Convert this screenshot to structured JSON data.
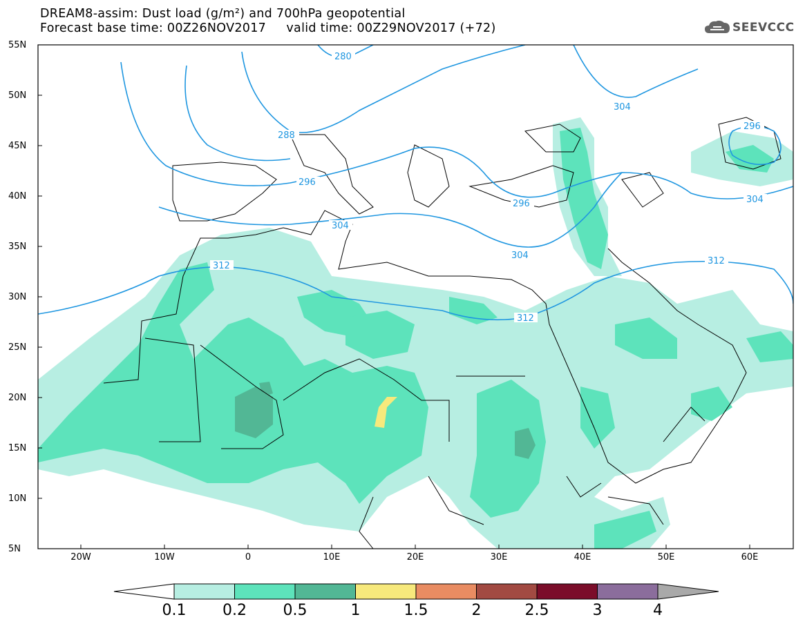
{
  "header": {
    "title_line1": "DREAM8-assim: Dust load (g/m²) and 700hPa geopotential",
    "title_line2": "Forecast base time: 00Z26NOV2017     valid time: 00Z29NOV2017 (+72)"
  },
  "logo": {
    "text": "SEEVCCC",
    "icon": "cloud-icon"
  },
  "map": {
    "lat_labels": [
      "55N",
      "50N",
      "45N",
      "40N",
      "35N",
      "30N",
      "25N",
      "20N",
      "15N",
      "10N",
      "5N"
    ],
    "lon_labels": [
      "20W",
      "10W",
      "0",
      "10E",
      "20E",
      "30E",
      "40E",
      "50E",
      "60E"
    ],
    "contour_labels": [
      {
        "id": "c280",
        "text": "280"
      },
      {
        "id": "c288",
        "text": "288"
      },
      {
        "id": "c296a",
        "text": "296"
      },
      {
        "id": "c296b",
        "text": "296"
      },
      {
        "id": "c296c",
        "text": "296"
      },
      {
        "id": "c304a",
        "text": "304"
      },
      {
        "id": "c304b",
        "text": "304"
      },
      {
        "id": "c304c",
        "text": "304"
      },
      {
        "id": "c304d",
        "text": "304"
      },
      {
        "id": "c312a",
        "text": "312"
      },
      {
        "id": "c312b",
        "text": "312"
      },
      {
        "id": "c312c",
        "text": "312"
      }
    ]
  },
  "colorbar": {
    "labels": [
      "0.1",
      "0.2",
      "0.5",
      "1",
      "1.5",
      "2",
      "2.5",
      "3",
      "4"
    ],
    "colors": [
      "#ffffff",
      "#b7eee2",
      "#5de3bb",
      "#52b795",
      "#f7e97c",
      "#e98c62",
      "#a24a42",
      "#7b0d2a",
      "#8b6d9c",
      "#a9a9a9"
    ]
  }
}
